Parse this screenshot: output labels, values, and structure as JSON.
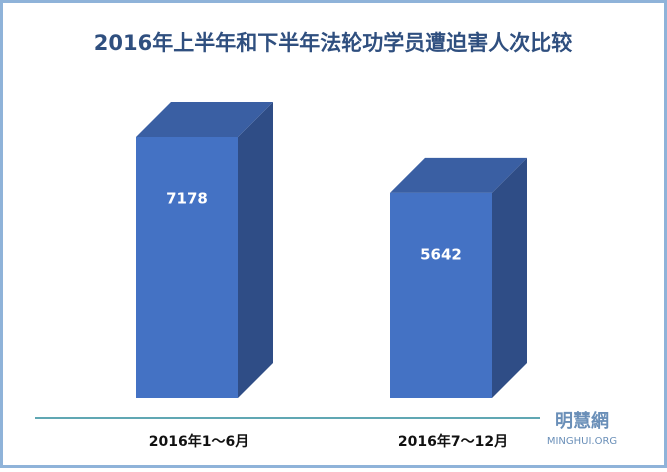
{
  "chart_data": {
    "type": "bar3d",
    "title": "2016年上半年和下半年法轮功学员遭迫害人次比较",
    "categories": [
      "2016年1～6月",
      "2016年7～12月"
    ],
    "values": [
      7178,
      5642
    ],
    "color": "#4472c4",
    "logo": "明慧網",
    "logo_subtext": "MINGHUI.ORG"
  }
}
